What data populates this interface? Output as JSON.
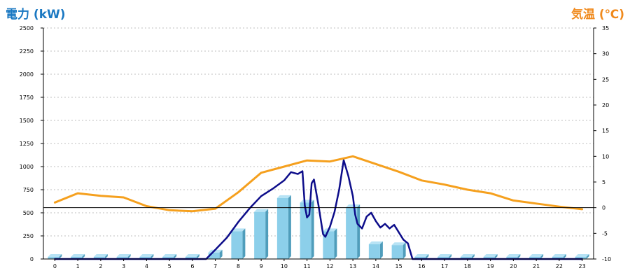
{
  "titles": {
    "left": "電力 (kW)",
    "right": "気温 (℃)"
  },
  "colors": {
    "title_left": "#1a78c2",
    "title_right": "#f08a1d",
    "bar_front": "#8ccfea",
    "bar_side": "#4f9dbb",
    "bar_top": "#b7e3f5",
    "power_line": "#0d0d8a",
    "temp_line": "#f5a01e",
    "grid": "#aaaaaa",
    "zero_line": "#000000"
  },
  "chart_data": {
    "type": "bar",
    "title": "",
    "x_tick_labels": [
      "0",
      "1",
      "2",
      "3",
      "4",
      "5",
      "6",
      "7",
      "8",
      "9",
      "10",
      "11",
      "12",
      "13",
      "14",
      "15",
      "16",
      "17",
      "18",
      "19",
      "20",
      "21",
      "22",
      "23"
    ],
    "categories": [
      0,
      1,
      2,
      3,
      4,
      5,
      6,
      7,
      8,
      9,
      10,
      11,
      12,
      13,
      14,
      15,
      16,
      17,
      18,
      19,
      20,
      21,
      22,
      23
    ],
    "y_left": {
      "label": "電力 (kW)",
      "ylim": [
        0,
        2500
      ],
      "ticks": [
        0,
        250,
        500,
        750,
        1000,
        1250,
        1500,
        1750,
        2000,
        2250,
        2500
      ]
    },
    "y_right": {
      "label": "気温 (℃)",
      "ylim": [
        -10,
        35
      ],
      "ticks": [
        -10,
        -5,
        0,
        5,
        10,
        15,
        20,
        25,
        30,
        35
      ]
    },
    "grid": true,
    "legend": "none",
    "series": [
      {
        "kind": "bar",
        "axis": "left",
        "values": [
          0,
          0,
          0,
          0,
          0,
          0,
          0,
          70,
          300,
          510,
          660,
          610,
          300,
          560,
          160,
          150,
          0,
          0,
          0,
          0,
          0,
          0,
          0,
          0
        ]
      },
      {
        "kind": "line",
        "axis": "left",
        "x": [
          0,
          1,
          2,
          3,
          4,
          5,
          6,
          6.6,
          7,
          7.5,
          8,
          8.5,
          9,
          9.5,
          10,
          10.3,
          10.6,
          10.8,
          10.9,
          11,
          11.1,
          11.2,
          11.3,
          11.5,
          11.7,
          11.8,
          12,
          12.2,
          12.4,
          12.6,
          12.8,
          13,
          13.1,
          13.2,
          13.4,
          13.6,
          13.8,
          14,
          14.2,
          14.4,
          14.6,
          14.8,
          15,
          15.2,
          15.4,
          15.6,
          16,
          17,
          18,
          19,
          20,
          21,
          22,
          23
        ],
        "y": [
          0,
          0,
          0,
          0,
          0,
          0,
          0,
          0,
          100,
          230,
          400,
          550,
          680,
          760,
          850,
          940,
          920,
          950,
          580,
          450,
          480,
          820,
          860,
          580,
          270,
          240,
          350,
          510,
          750,
          1070,
          900,
          680,
          480,
          380,
          330,
          460,
          500,
          410,
          340,
          380,
          330,
          370,
          290,
          210,
          170,
          0,
          0,
          0,
          0,
          0,
          0,
          0,
          0,
          0
        ]
      },
      {
        "kind": "line",
        "axis": "right",
        "x": [
          0,
          1,
          2,
          3,
          4,
          5,
          6,
          7,
          8,
          9,
          10,
          11,
          12,
          13,
          14,
          15,
          16,
          17,
          18,
          19,
          20,
          21,
          22,
          23
        ],
        "y": [
          1.0,
          2.8,
          2.3,
          2.0,
          0.3,
          -0.5,
          -0.7,
          -0.2,
          3.0,
          6.8,
          8.0,
          9.2,
          9.0,
          10.0,
          8.5,
          7.0,
          5.3,
          4.5,
          3.5,
          2.8,
          1.4,
          0.8,
          0.2,
          -0.3
        ]
      }
    ]
  }
}
